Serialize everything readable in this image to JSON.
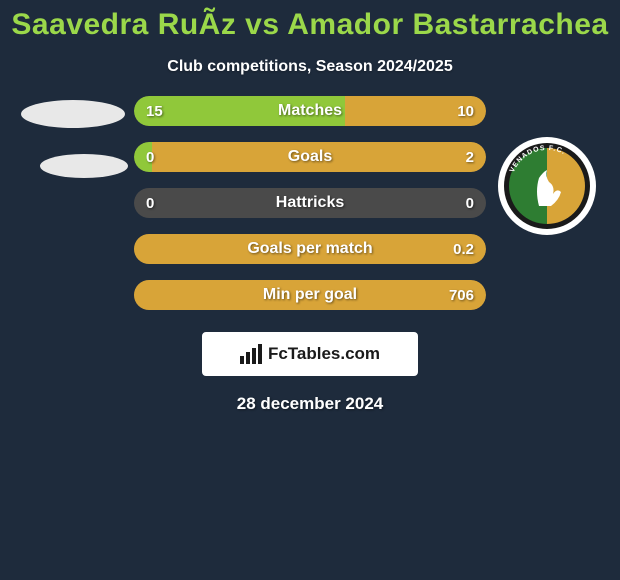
{
  "colors": {
    "bg_top": "#1e2b3c",
    "title": "#9bd84a",
    "subtitle": "#ffffff",
    "bar_track": "#4a4a4a",
    "fill_left": "#90c83a",
    "fill_right": "#d8a438",
    "bar_label": "#ffffff",
    "bar_val": "#ffffff",
    "oval": "#e8e8e8",
    "badge_ring": "#ffffff",
    "badge_inner": "#1a1a1a",
    "badge_left": "#2e7d32",
    "badge_right": "#d8a438",
    "brand_border": "#ffffff",
    "brand_bg": "#ffffff",
    "brand_text": "#1a1a1a",
    "date": "#ffffff"
  },
  "title": "Saavedra RuÃ­z vs Amador Bastarrachea",
  "subtitle": "Club competitions, Season 2024/2025",
  "bars": [
    {
      "label": "Matches",
      "left": "15",
      "right": "10",
      "left_pct": 60,
      "right_pct": 40
    },
    {
      "label": "Goals",
      "left": "0",
      "right": "2",
      "left_pct": 5,
      "right_pct": 95
    },
    {
      "label": "Hattricks",
      "left": "0",
      "right": "0",
      "left_pct": 0,
      "right_pct": 0
    },
    {
      "label": "Goals per match",
      "left": "",
      "right": "0.2",
      "left_pct": 0,
      "right_pct": 100
    },
    {
      "label": "Min per goal",
      "left": "",
      "right": "706",
      "left_pct": 0,
      "right_pct": 100
    }
  ],
  "brand": {
    "icon": "chart-icon",
    "text": "FcTables.com"
  },
  "date": "28 december 2024",
  "right_badge_text": "VENADOS F.C."
}
